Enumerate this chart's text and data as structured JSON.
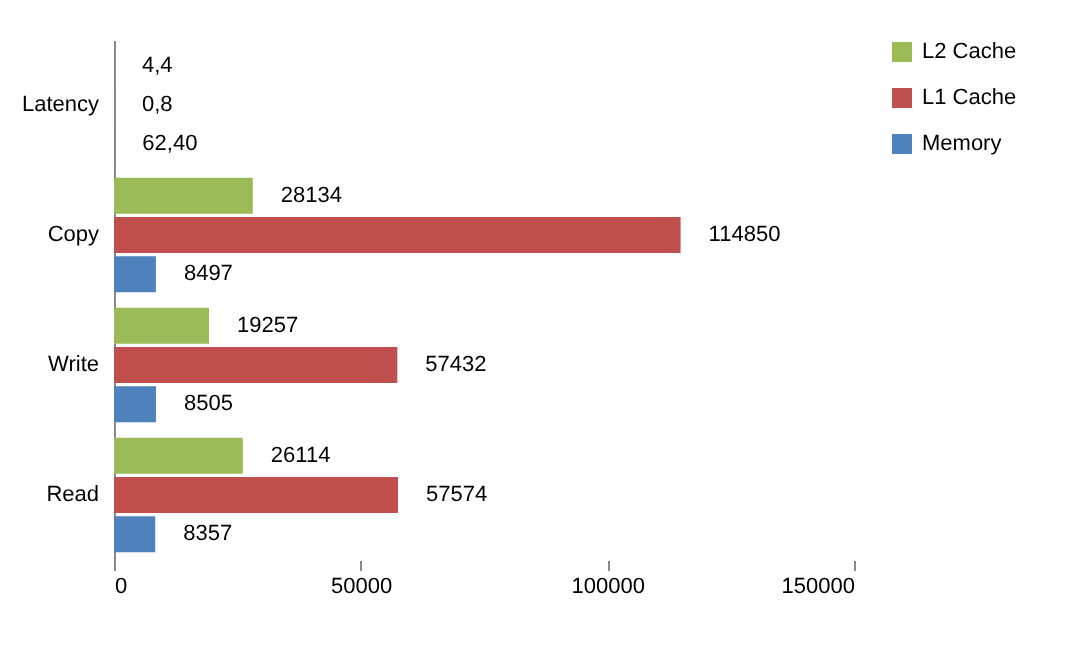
{
  "chart_data": {
    "type": "bar",
    "orientation": "horizontal",
    "categories": [
      "Latency",
      "Copy",
      "Write",
      "Read"
    ],
    "series": [
      {
        "name": "L2 Cache",
        "color": "#9bbb59",
        "values": [
          4.4,
          28134,
          19257,
          26114
        ],
        "value_labels": [
          "4,4",
          "28134",
          "19257",
          "26114"
        ]
      },
      {
        "name": "L1 Cache",
        "color": "#c0504d",
        "values": [
          0.8,
          114850,
          57432,
          57574
        ],
        "value_labels": [
          "0,8",
          "114850",
          "57432",
          "57574"
        ]
      },
      {
        "name": "Memory",
        "color": "#4f81bd",
        "values": [
          62.4,
          8497,
          8505,
          8357
        ],
        "value_labels": [
          "62,40",
          "8497",
          "8505",
          "8357"
        ]
      }
    ],
    "xlim": [
      0,
      150000
    ],
    "xticks": [
      0,
      50000,
      100000,
      150000
    ],
    "grid": false,
    "legend": "right"
  }
}
